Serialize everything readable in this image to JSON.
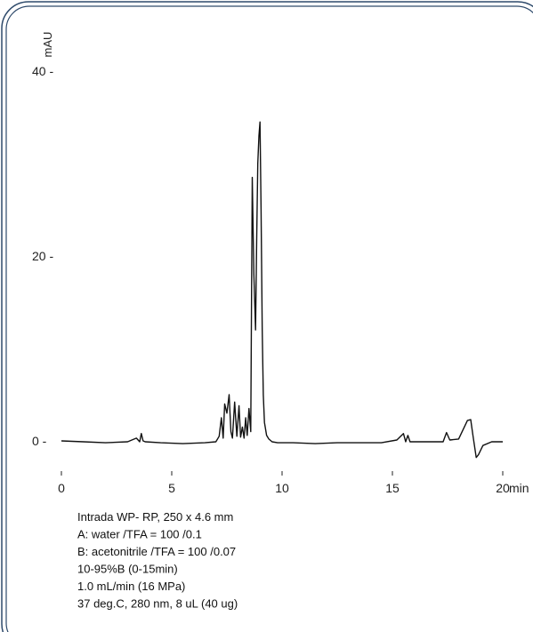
{
  "chart_data": {
    "type": "line",
    "ylabel": "mAU",
    "xunit": "min",
    "xlim": [
      0,
      20
    ],
    "ylim": [
      0,
      40
    ],
    "xticks": [
      0,
      5,
      10,
      15,
      20
    ],
    "yticks": [
      0,
      20,
      40
    ],
    "grid": false,
    "series": [
      {
        "values_note": "",
        "x": [
          0,
          1,
          2,
          3,
          3.4,
          3.55,
          3.62,
          3.7,
          3.8,
          4.5,
          5.5,
          6.5,
          7.0,
          7.15,
          7.25,
          7.33,
          7.4,
          7.5,
          7.6,
          7.68,
          7.75,
          7.85,
          7.95,
          8.05,
          8.12,
          8.2,
          8.28,
          8.35,
          8.42,
          8.5,
          8.58,
          8.65,
          8.72,
          8.8,
          8.85,
          8.9,
          8.95,
          9.0,
          9.05,
          9.1,
          9.15,
          9.2,
          9.3,
          9.4,
          9.55,
          9.8,
          10.5,
          11.5,
          12.5,
          13.5,
          14.5,
          15.2,
          15.5,
          15.6,
          15.7,
          15.8,
          15.9,
          16.5,
          17.3,
          17.45,
          17.6,
          18.0,
          18.4,
          18.55,
          18.65,
          18.8,
          18.9,
          19.1,
          19.5,
          20.0
        ],
        "y": [
          0,
          -0.1,
          -0.2,
          -0.1,
          0.3,
          -0.1,
          0.8,
          0,
          -0.1,
          -0.2,
          -0.3,
          -0.2,
          -0.1,
          0.5,
          2.5,
          0.3,
          4.0,
          3.0,
          5.0,
          1.0,
          0.3,
          4.2,
          0.5,
          3.8,
          0.4,
          1.5,
          0.3,
          2.5,
          0.6,
          3.5,
          1.0,
          28.5,
          18.0,
          12.0,
          22.0,
          30.0,
          33.0,
          34.5,
          25.0,
          12.0,
          5.0,
          2.0,
          0.6,
          0.2,
          -0.1,
          -0.2,
          -0.2,
          -0.3,
          -0.2,
          -0.2,
          -0.2,
          0.1,
          0.8,
          -0.1,
          0.6,
          -0.1,
          -0.1,
          -0.1,
          -0.1,
          0.9,
          0.1,
          0.2,
          2.2,
          2.3,
          0.6,
          -1.8,
          -1.5,
          -0.5,
          -0.1,
          -0.1
        ]
      }
    ]
  },
  "conditions": [
    "Intrada WP- RP, 250 x 4.6 mm",
    "A: water /TFA = 100 /0.1",
    "B: acetonitrile /TFA = 100 /0.07",
    "10-95%B (0-15min)",
    "1.0 mL/min (16 MPa)",
    "37 deg.C, 280 nm, 8 uL (40 ug)"
  ],
  "colors": {
    "border": "#2e4a6b",
    "trace": "#111111"
  }
}
